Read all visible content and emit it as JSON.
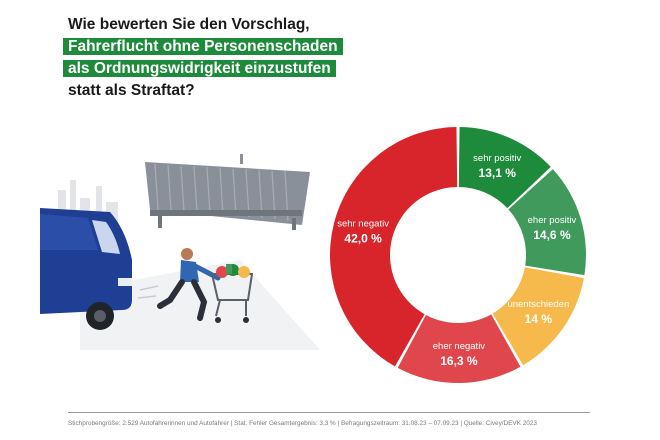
{
  "title": {
    "lines": [
      "Wie bewerten Sie den Vorschlag,",
      "Fahrerflucht ohne Personenschaden",
      "als Ordnungswidrigkeit einzustufen",
      "statt als Straftat?"
    ]
  },
  "chart_data": {
    "type": "pie",
    "donut": true,
    "labels": [
      "sehr positiv",
      "eher positiv",
      "unentschieden",
      "eher negativ",
      "sehr negativ"
    ],
    "values": [
      13.1,
      14.6,
      14,
      16.3,
      42.0
    ],
    "value_labels": [
      "13,1 %",
      "14,6 %",
      "14 %",
      "16,3 %",
      "42,0 %"
    ],
    "colors": [
      "#1e8a3b",
      "#3f9a5c",
      "#f6b94c",
      "#e0474c",
      "#d8242b"
    ]
  },
  "footer": "Stichprobengröße: 2.529 Autofahrerinnen und Autofahrer  |  Stat. Fehler Gesamtergebnis: 3,3 %  |  Befragungszeitraum: 31.08.23 – 07.09.23  |  Quelle: Civey/DEVK 2023"
}
